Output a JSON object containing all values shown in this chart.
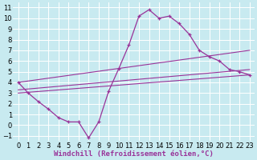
{
  "bg_color": "#c8eaf0",
  "grid_color": "#ffffff",
  "line_color": "#993399",
  "marker_color": "#993399",
  "xlabel": "Windchill (Refroidissement éolien,°C)",
  "xlim": [
    -0.5,
    23.5
  ],
  "ylim": [
    -1.5,
    11.5
  ],
  "xticks": [
    0,
    1,
    2,
    3,
    4,
    5,
    6,
    7,
    8,
    9,
    10,
    11,
    12,
    13,
    14,
    15,
    16,
    17,
    18,
    19,
    20,
    21,
    22,
    23
  ],
  "yticks": [
    -1,
    0,
    1,
    2,
    3,
    4,
    5,
    6,
    7,
    8,
    9,
    10,
    11
  ],
  "line1_x": [
    0,
    1,
    2,
    3,
    4,
    5,
    6,
    7,
    8,
    9,
    10,
    11,
    12,
    13,
    14,
    15,
    16,
    17,
    18,
    19,
    20,
    21,
    22,
    23
  ],
  "line1_y": [
    4.0,
    3.0,
    2.2,
    1.5,
    0.7,
    0.3,
    0.3,
    -1.2,
    0.3,
    3.2,
    5.3,
    7.5,
    10.2,
    10.8,
    10.0,
    10.2,
    9.5,
    8.5,
    7.0,
    6.4,
    6.0,
    5.2,
    5.0,
    4.7
  ],
  "line2_x": [
    0,
    23
  ],
  "line2_y": [
    4.0,
    7.0
  ],
  "line3_x": [
    0,
    23
  ],
  "line3_y": [
    3.3,
    5.2
  ],
  "line4_x": [
    0,
    23
  ],
  "line4_y": [
    3.0,
    4.7
  ],
  "fontsize_label": 6.5,
  "fontsize_tick": 6
}
